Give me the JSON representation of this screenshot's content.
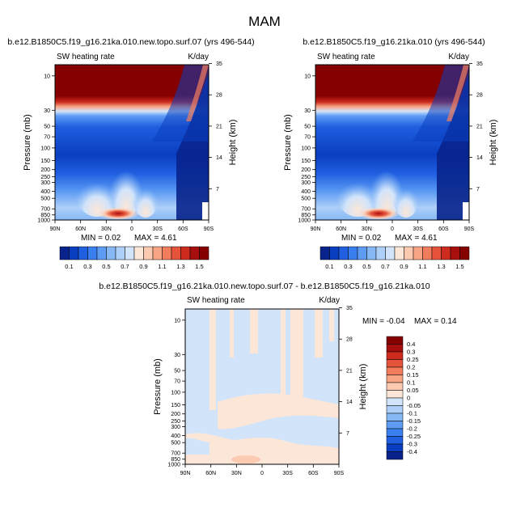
{
  "figure_title": "MAM",
  "chart_data": [
    {
      "type": "heatmap",
      "panel": "top-left",
      "title": "b.e12.B1850C5.f19_g16.21ka.010.new.topo.surf.07 (yrs 496-544)",
      "left_string": "SW heating rate",
      "right_string": "K/day",
      "xlabel": "",
      "ylabel": "Pressure (mb)",
      "ylabel_right": "Height (km)",
      "x_ticks": [
        "90N",
        "60N",
        "30N",
        "0",
        "30S",
        "60S",
        "90S"
      ],
      "y_ticks": [
        "10",
        "30",
        "50",
        "70",
        "100",
        "150",
        "200",
        "250",
        "300",
        "400",
        "500",
        "700",
        "850",
        "1000"
      ],
      "height_ticks": [
        "35",
        "28",
        "21",
        "14",
        "7"
      ],
      "min_label": "MIN =   0.02",
      "max_label": "MAX =   4.61",
      "min": 0.02,
      "max": 4.61,
      "colorbar_labels": [
        "0.1",
        "0.3",
        "0.5",
        "0.7",
        "0.9",
        "1.1",
        "1.3",
        "1.5"
      ],
      "levels": [
        0.1,
        0.2,
        0.3,
        0.4,
        0.5,
        0.6,
        0.7,
        0.8,
        0.9,
        1.0,
        1.1,
        1.2,
        1.3,
        1.4,
        1.5
      ],
      "colors": [
        "#08238c",
        "#0a3ec0",
        "#1f5fe0",
        "#3a7ff0",
        "#5e9cf4",
        "#86b8f6",
        "#aecff8",
        "#d2e4fa",
        "#fbe6d8",
        "#fbcab0",
        "#f7a585",
        "#f27d5c",
        "#e4533a",
        "#cc2b1e",
        "#a60f0e",
        "#850000"
      ],
      "colorbar_orientation": "horizontal"
    },
    {
      "type": "heatmap",
      "panel": "top-right",
      "title": "b.e12.B1850C5.f19_g16.21ka.010 (yrs 496-544)",
      "left_string": "SW heating rate",
      "right_string": "K/day",
      "xlabel": "",
      "ylabel": "Pressure (mb)",
      "ylabel_right": "Height (km)",
      "x_ticks": [
        "90N",
        "60N",
        "30N",
        "0",
        "30S",
        "60S",
        "90S"
      ],
      "y_ticks": [
        "10",
        "30",
        "50",
        "70",
        "100",
        "150",
        "200",
        "250",
        "300",
        "400",
        "500",
        "700",
        "850",
        "1000"
      ],
      "height_ticks": [
        "35",
        "28",
        "21",
        "14",
        "7"
      ],
      "min_label": "MIN =   0.02",
      "max_label": "MAX =   4.61",
      "min": 0.02,
      "max": 4.61,
      "colorbar_labels": [
        "0.1",
        "0.3",
        "0.5",
        "0.7",
        "0.9",
        "1.1",
        "1.3",
        "1.5"
      ],
      "levels": [
        0.1,
        0.2,
        0.3,
        0.4,
        0.5,
        0.6,
        0.7,
        0.8,
        0.9,
        1.0,
        1.1,
        1.2,
        1.3,
        1.4,
        1.5
      ],
      "colors": [
        "#08238c",
        "#0a3ec0",
        "#1f5fe0",
        "#3a7ff0",
        "#5e9cf4",
        "#86b8f6",
        "#aecff8",
        "#d2e4fa",
        "#fbe6d8",
        "#fbcab0",
        "#f7a585",
        "#f27d5c",
        "#e4533a",
        "#cc2b1e",
        "#a60f0e",
        "#850000"
      ],
      "colorbar_orientation": "horizontal"
    },
    {
      "type": "heatmap",
      "panel": "bottom",
      "title": "b.e12.B1850C5.f19_g16.21ka.010.new.topo.surf.07 - b.e12.B1850C5.f19_g16.21ka.010",
      "left_string": "SW heating rate",
      "right_string": "K/day",
      "xlabel": "",
      "ylabel": "Pressure (mb)",
      "ylabel_right": "Height (km)",
      "x_ticks": [
        "90N",
        "60N",
        "30N",
        "0",
        "30S",
        "60S",
        "90S"
      ],
      "y_ticks": [
        "10",
        "30",
        "50",
        "70",
        "100",
        "150",
        "200",
        "250",
        "300",
        "400",
        "500",
        "700",
        "850",
        "1000"
      ],
      "height_ticks": [
        "35",
        "28",
        "21",
        "14",
        "7"
      ],
      "min_label": "MIN = -0.04",
      "max_label": "MAX =   0.14",
      "min": -0.04,
      "max": 0.14,
      "colorbar_labels": [
        "0.4",
        "0.3",
        "0.25",
        "0.2",
        "0.15",
        "0.1",
        "0.05",
        "0",
        "-0.05",
        "-0.1",
        "-0.15",
        "-0.2",
        "-0.25",
        "-0.3",
        "-0.4"
      ],
      "levels": [
        -0.4,
        -0.3,
        -0.25,
        -0.2,
        -0.15,
        -0.1,
        -0.05,
        0,
        0.05,
        0.1,
        0.15,
        0.2,
        0.25,
        0.3,
        0.4
      ],
      "colors": [
        "#850000",
        "#a60f0e",
        "#cc2b1e",
        "#e4533a",
        "#f27d5c",
        "#f7a585",
        "#fbcab0",
        "#fbe6d8",
        "#d2e4fa",
        "#aecff8",
        "#86b8f6",
        "#5e9cf4",
        "#3a7ff0",
        "#1f5fe0",
        "#0a3ec0",
        "#08238c"
      ],
      "colorbar_orientation": "vertical"
    }
  ]
}
